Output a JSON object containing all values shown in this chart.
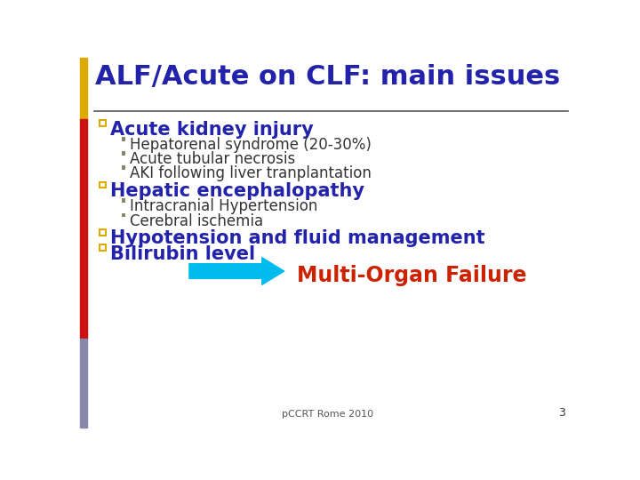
{
  "title": "ALF/Acute on CLF: main issues",
  "title_color": "#2222aa",
  "title_fontsize": 22,
  "bg_color": "#ffffff",
  "bullet1_text": "Acute kidney injury",
  "bullet1_color": "#2222aa",
  "bullet1_fontsize": 15,
  "sub1": [
    "Hepatorenal syndrome (20-30%)",
    "Acute tubular necrosis",
    "AKI following liver tranplantation"
  ],
  "sub1_color": "#333333",
  "sub1_fontsize": 12,
  "bullet2_text": "Hepatic encephalopathy",
  "bullet2_color": "#2222aa",
  "bullet2_fontsize": 15,
  "sub2": [
    "Intracranial Hypertension",
    "Cerebral ischemia"
  ],
  "sub2_color": "#333333",
  "sub2_fontsize": 12,
  "bullet3_text": "Hypotension and fluid management",
  "bullet3_color": "#2222aa",
  "bullet3_fontsize": 15,
  "bullet4_text": "Bilirubin level",
  "bullet4_color": "#2222aa",
  "bullet4_fontsize": 15,
  "arrow_color": "#00bbee",
  "arrow_label": "Multi-Organ Failure",
  "arrow_label_color": "#cc2200",
  "arrow_label_fontsize": 17,
  "footer_text": "pCCRT Rome 2010",
  "footer_fontsize": 8,
  "footer_color": "#555555",
  "page_number": "3",
  "page_number_color": "#333333",
  "page_number_fontsize": 9,
  "separator_color": "#555555",
  "square_bullet_color": "#ddaa00",
  "small_bullet_color": "#888866",
  "left_bar_segments": [
    [
      0,
      450,
      10,
      90,
      "#ddaa00"
    ],
    [
      0,
      310,
      10,
      140,
      "#cc1111"
    ],
    [
      0,
      130,
      10,
      180,
      "#cc1111"
    ],
    [
      0,
      0,
      10,
      130,
      "#8888aa"
    ]
  ]
}
